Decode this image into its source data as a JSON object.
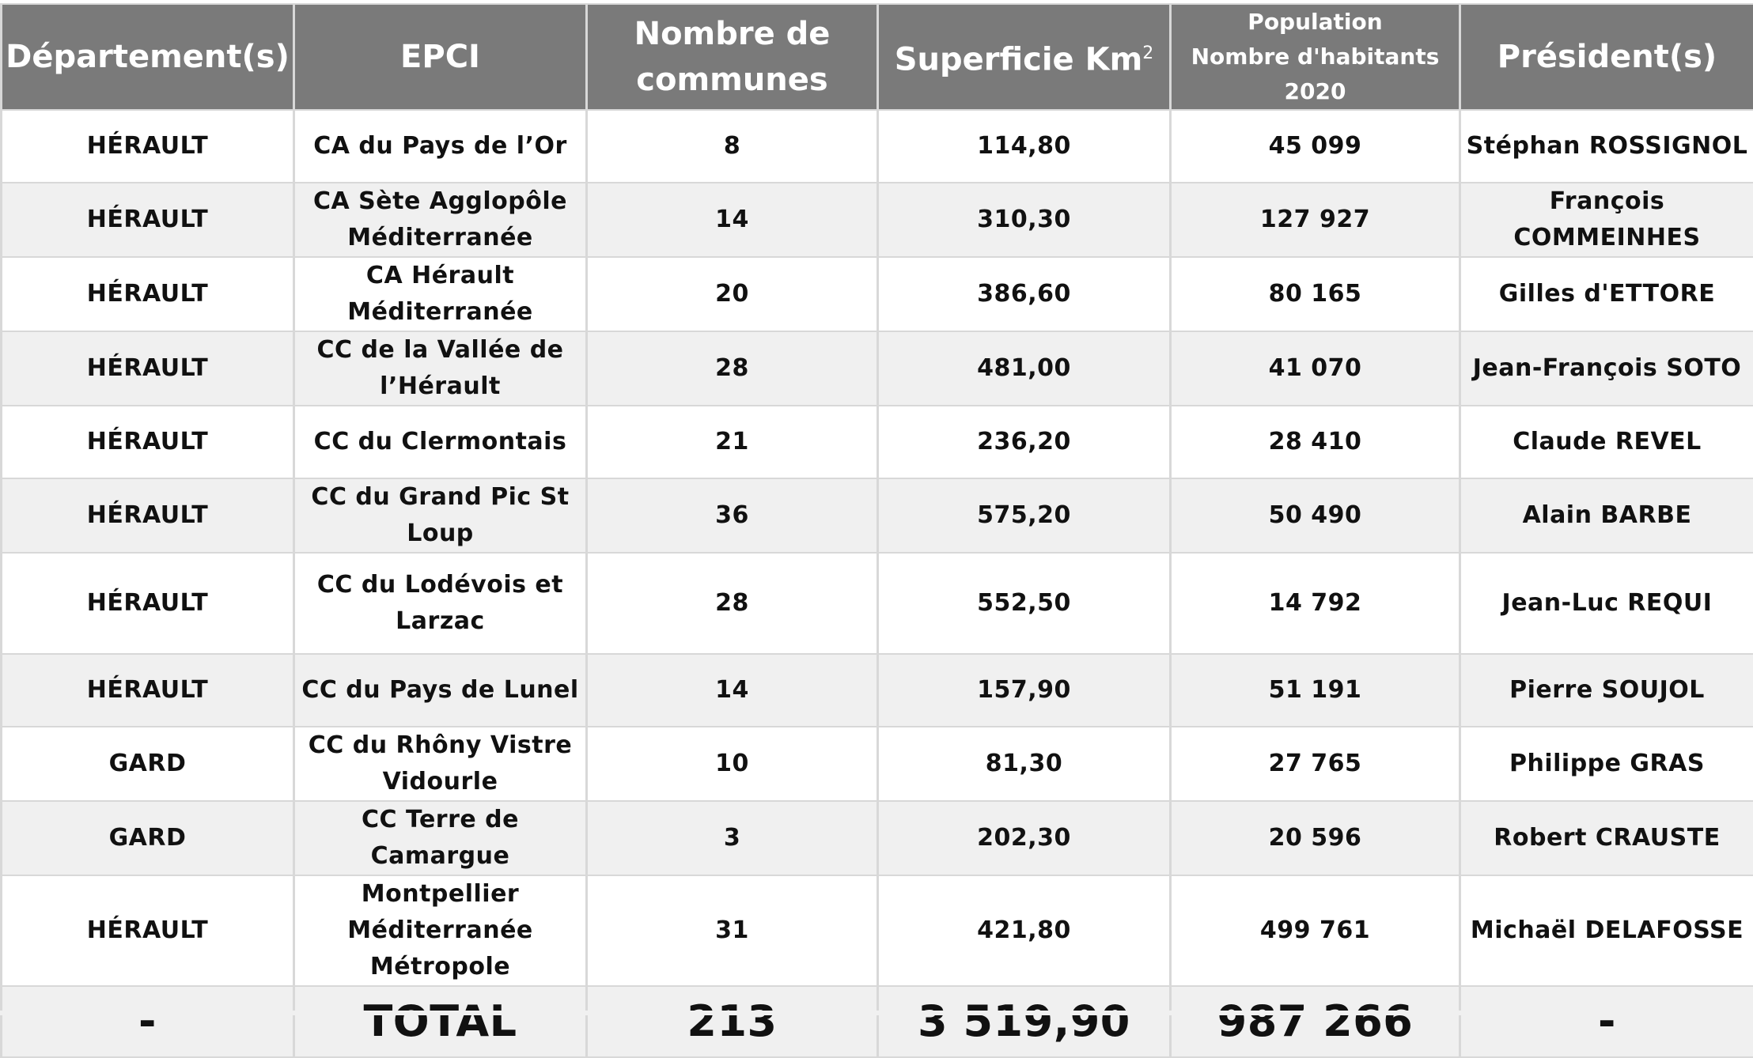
{
  "headers": {
    "departement": "Département(s)",
    "epci": "EPCI",
    "nombre_line1": "Nombre de",
    "nombre_line2": "communes",
    "superficie": "Superficie Km",
    "superficie_sup": "2",
    "population_line1": "Population",
    "population_line2": "Nombre d'habitants 2020",
    "president": "Président(s)"
  },
  "rows": [
    {
      "departement": "HÉRAULT",
      "epci": "CA du Pays de l’Or",
      "communes": "8",
      "superficie": "114,80",
      "population": "45 099",
      "president": "Stéphan ROSSIGNOL"
    },
    {
      "departement": "HÉRAULT",
      "epci": "CA Sète Agglopôle Méditerranée",
      "communes": "14",
      "superficie": "310,30",
      "population": "127 927",
      "president": "François COMMEINHES"
    },
    {
      "departement": "HÉRAULT",
      "epci": "CA Hérault Méditerranée",
      "communes": "20",
      "superficie": "386,60",
      "population": "80 165",
      "president": "Gilles d'ETTORE"
    },
    {
      "departement": "HÉRAULT",
      "epci": "CC de la Vallée de l’Hérault",
      "communes": "28",
      "superficie": "481,00",
      "population": "41 070",
      "president": "Jean-François SOTO"
    },
    {
      "departement": "HÉRAULT",
      "epci": "CC du Clermontais",
      "communes": "21",
      "superficie": "236,20",
      "population": "28 410",
      "president": "Claude REVEL"
    },
    {
      "departement": "HÉRAULT",
      "epci": "CC du Grand Pic St Loup",
      "communes": "36",
      "superficie": "575,20",
      "population": "50 490",
      "president": "Alain BARBE"
    },
    {
      "departement": "HÉRAULT",
      "epci": "CC du Lodévois et Larzac",
      "communes": "28",
      "superficie": "552,50",
      "population": "14 792",
      "president": "Jean-Luc REQUI"
    },
    {
      "departement": "HÉRAULT",
      "epci": "CC du Pays de Lunel",
      "communes": "14",
      "superficie": "157,90",
      "population": "51 191",
      "president": "Pierre SOUJOL"
    },
    {
      "departement": "GARD",
      "epci": "CC du Rhôny Vistre Vidourle",
      "communes": "10",
      "superficie": "81,30",
      "population": "27 765",
      "president": "Philippe GRAS"
    },
    {
      "departement": "GARD",
      "epci": "CC Terre de Camargue",
      "communes": "3",
      "superficie": "202,30",
      "population": "20 596",
      "president": "Robert CRAUSTE"
    },
    {
      "departement": "HÉRAULT",
      "epci": "Montpellier Méditerranée Métropole",
      "communes": "31",
      "superficie": "421,80",
      "population": "499 761",
      "president": "Michaël DELAFOSSE"
    }
  ],
  "total": {
    "departement": "-",
    "epci": "TOTAL",
    "communes": "213",
    "superficie": "3 519,90",
    "population": "987 266",
    "president": "-"
  }
}
